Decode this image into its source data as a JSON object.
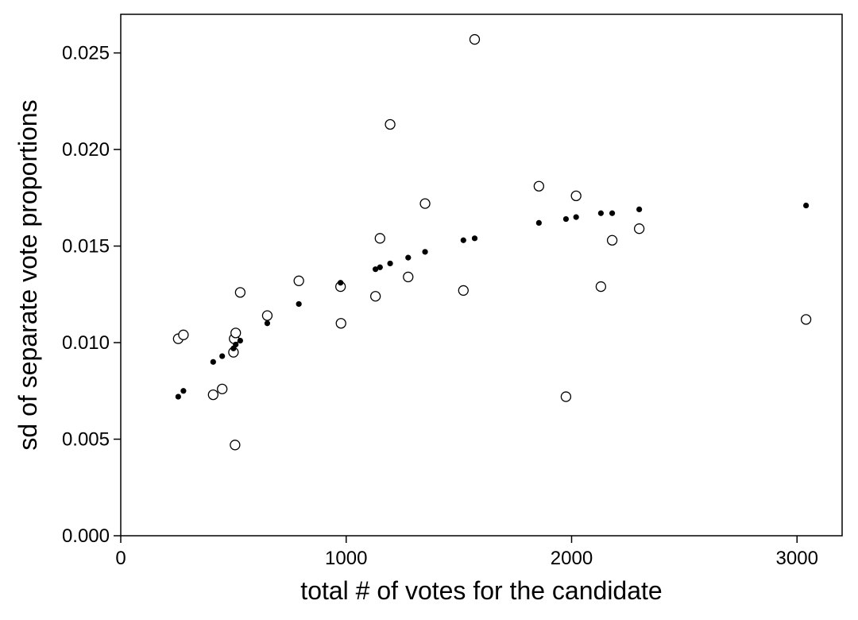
{
  "chart_data": {
    "type": "scatter",
    "xlabel": "total # of votes for the candidate",
    "ylabel": "sd of separate vote proportions",
    "xlim": [
      0,
      3200
    ],
    "ylim": [
      0,
      0.027
    ],
    "x_ticks": [
      {
        "value": 0,
        "label": "0"
      },
      {
        "value": 1000,
        "label": "1000"
      },
      {
        "value": 2000,
        "label": "2000"
      },
      {
        "value": 3000,
        "label": "3000"
      }
    ],
    "y_ticks": [
      {
        "value": 0.0,
        "label": "0.000"
      },
      {
        "value": 0.005,
        "label": "0.005"
      },
      {
        "value": 0.01,
        "label": "0.010"
      },
      {
        "value": 0.015,
        "label": "0.015"
      },
      {
        "value": 0.02,
        "label": "0.020"
      },
      {
        "value": 0.025,
        "label": "0.025"
      }
    ],
    "grid": false,
    "series": [
      {
        "marker": "open-circle",
        "color": "#000000",
        "points": [
          {
            "x": 255,
            "y": 0.0102
          },
          {
            "x": 278,
            "y": 0.0104
          },
          {
            "x": 410,
            "y": 0.0073
          },
          {
            "x": 450,
            "y": 0.0076
          },
          {
            "x": 500,
            "y": 0.0095
          },
          {
            "x": 503,
            "y": 0.0102
          },
          {
            "x": 507,
            "y": 0.0047
          },
          {
            "x": 510,
            "y": 0.0105
          },
          {
            "x": 530,
            "y": 0.0126
          },
          {
            "x": 650,
            "y": 0.0114
          },
          {
            "x": 790,
            "y": 0.0132
          },
          {
            "x": 975,
            "y": 0.0129
          },
          {
            "x": 977,
            "y": 0.011
          },
          {
            "x": 1130,
            "y": 0.0124
          },
          {
            "x": 1150,
            "y": 0.0154
          },
          {
            "x": 1195,
            "y": 0.0213
          },
          {
            "x": 1275,
            "y": 0.0134
          },
          {
            "x": 1350,
            "y": 0.0172
          },
          {
            "x": 1520,
            "y": 0.0127
          },
          {
            "x": 1570,
            "y": 0.0257
          },
          {
            "x": 1855,
            "y": 0.0181
          },
          {
            "x": 1975,
            "y": 0.0072
          },
          {
            "x": 2020,
            "y": 0.0176
          },
          {
            "x": 2130,
            "y": 0.0129
          },
          {
            "x": 2180,
            "y": 0.0153
          },
          {
            "x": 2300,
            "y": 0.0159
          },
          {
            "x": 3040,
            "y": 0.0112
          }
        ]
      },
      {
        "marker": "filled-dot",
        "color": "#000000",
        "points": [
          {
            "x": 255,
            "y": 0.0072
          },
          {
            "x": 278,
            "y": 0.0075
          },
          {
            "x": 410,
            "y": 0.009
          },
          {
            "x": 450,
            "y": 0.0093
          },
          {
            "x": 500,
            "y": 0.0097
          },
          {
            "x": 510,
            "y": 0.0099
          },
          {
            "x": 530,
            "y": 0.0101
          },
          {
            "x": 650,
            "y": 0.011
          },
          {
            "x": 790,
            "y": 0.012
          },
          {
            "x": 975,
            "y": 0.0131
          },
          {
            "x": 1130,
            "y": 0.0138
          },
          {
            "x": 1150,
            "y": 0.0139
          },
          {
            "x": 1195,
            "y": 0.0141
          },
          {
            "x": 1275,
            "y": 0.0144
          },
          {
            "x": 1350,
            "y": 0.0147
          },
          {
            "x": 1520,
            "y": 0.0153
          },
          {
            "x": 1570,
            "y": 0.0154
          },
          {
            "x": 1855,
            "y": 0.0162
          },
          {
            "x": 1975,
            "y": 0.0164
          },
          {
            "x": 2020,
            "y": 0.0165
          },
          {
            "x": 2130,
            "y": 0.0167
          },
          {
            "x": 2180,
            "y": 0.0167
          },
          {
            "x": 2300,
            "y": 0.0169
          },
          {
            "x": 3040,
            "y": 0.0171
          }
        ]
      }
    ]
  }
}
